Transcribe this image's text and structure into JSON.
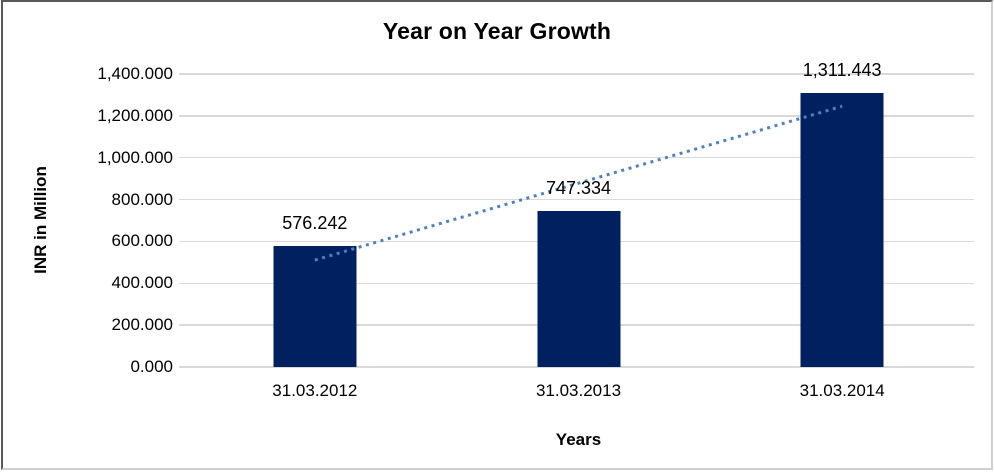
{
  "chart_data": {
    "type": "bar",
    "title": "Year on Year Growth",
    "xlabel": "Years",
    "ylabel": "INR in Million",
    "categories": [
      "31.03.2012",
      "31.03.2013",
      "31.03.2014"
    ],
    "values": [
      576.242,
      747.334,
      1311.443
    ],
    "data_labels": [
      "576.242",
      "747.334",
      "1,311.443"
    ],
    "ylim": [
      0,
      1400
    ],
    "ytick_step": 200,
    "ytick_labels": [
      "0.000",
      "200.000",
      "400.000",
      "600.000",
      "800.000",
      "1,000.000",
      "1,200.000",
      "1,400.000"
    ],
    "grid": true,
    "legend": false,
    "colors": {
      "bar": "#002060",
      "trendline": "#4F81BD",
      "gridline": "#d9d9d9",
      "text": "#000000"
    },
    "trendline": {
      "kind": "linear",
      "style": "dotted"
    }
  }
}
